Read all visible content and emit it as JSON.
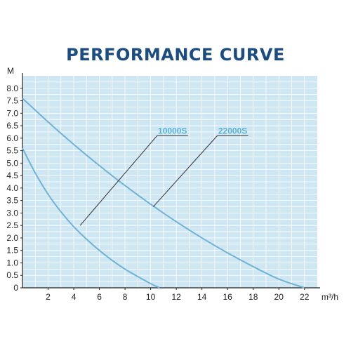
{
  "chart_data": {
    "type": "line",
    "title": "PERFORMANCE CURVE",
    "ylabel": "M",
    "xlabel": "m³/h",
    "xlim": [
      0,
      23
    ],
    "ylim": [
      0,
      8.5
    ],
    "x_ticks": [
      2,
      4,
      6,
      8,
      10,
      12,
      14,
      16,
      18,
      20,
      22
    ],
    "y_ticks": [
      0,
      0.5,
      1.0,
      1.5,
      2.0,
      2.5,
      3.0,
      3.5,
      4.0,
      4.5,
      5.0,
      5.5,
      6.0,
      6.5,
      7.0,
      7.5,
      8.0
    ],
    "y_tick_labels": [
      "0",
      "0.5",
      "1.0",
      "1.5",
      "2.0",
      "2.5",
      "3.0",
      "3.5",
      "4.0",
      "4.5",
      "5.0",
      "5.5",
      "6.0",
      "6.5",
      "7.0",
      "7.5",
      "8.0"
    ],
    "grid": true,
    "background_color": "#cfe6f3",
    "grid_color": "#ffffff",
    "line_color": "#6fb3d6",
    "title_color": "#1c4d82",
    "series": [
      {
        "name": "10000S",
        "x": [
          0,
          1,
          2,
          3,
          4,
          5,
          6,
          7,
          8,
          9,
          10,
          10.7
        ],
        "y": [
          5.6,
          4.6,
          3.75,
          3.05,
          2.45,
          1.95,
          1.5,
          1.1,
          0.75,
          0.45,
          0.17,
          0
        ]
      },
      {
        "name": "22000S",
        "x": [
          0,
          2,
          4,
          6,
          8,
          10,
          12,
          14,
          16,
          18,
          20,
          22
        ],
        "y": [
          7.6,
          6.65,
          5.75,
          4.9,
          4.1,
          3.35,
          2.65,
          2.0,
          1.4,
          0.85,
          0.35,
          0
        ]
      }
    ],
    "annotations": [
      {
        "series": "10000S",
        "text": "10000S",
        "point": [
          4.5,
          2.5
        ],
        "label_at": [
          10.5,
          6.1
        ]
      },
      {
        "series": "22000S",
        "text": "22000S",
        "point": [
          10.2,
          3.25
        ],
        "label_at": [
          15.2,
          6.1
        ]
      }
    ]
  }
}
